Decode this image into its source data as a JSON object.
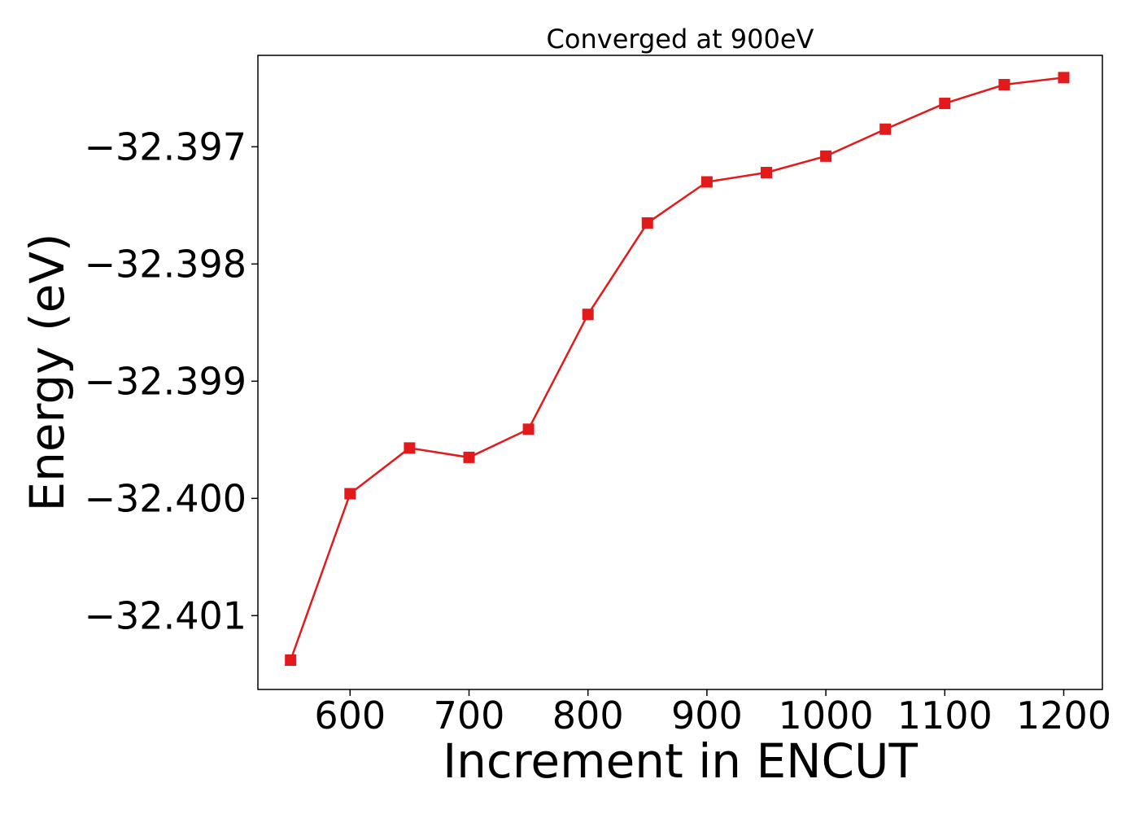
{
  "chart_data": {
    "type": "line",
    "title": "Converged at 900eV",
    "xlabel": "Increment in ENCUT",
    "ylabel": "Energy (eV)",
    "xlim": [
      522.5,
      1232.5
    ],
    "ylim": [
      -32.40163,
      -32.39622
    ],
    "x_ticks": [
      600,
      700,
      800,
      900,
      1000,
      1100,
      1200
    ],
    "x_tick_labels": [
      "600",
      "700",
      "800",
      "900",
      "1000",
      "1100",
      "1200"
    ],
    "y_ticks": [
      -32.397,
      -32.398,
      -32.399,
      -32.4,
      -32.401
    ],
    "y_tick_labels": [
      "−32.397",
      "−32.398",
      "−32.399",
      "−32.400",
      "−32.401"
    ],
    "grid": false,
    "series": [
      {
        "color": "#e31a1c",
        "marker": "square",
        "x": [
          550,
          600,
          650,
          700,
          750,
          800,
          850,
          900,
          950,
          1000,
          1050,
          1100,
          1150,
          1200
        ],
        "y": [
          -32.40138,
          -32.39996,
          -32.39957,
          -32.39965,
          -32.39941,
          -32.39843,
          -32.39765,
          -32.3973,
          -32.39722,
          -32.39708,
          -32.39685,
          -32.39663,
          -32.39647,
          -32.39641
        ]
      }
    ]
  }
}
